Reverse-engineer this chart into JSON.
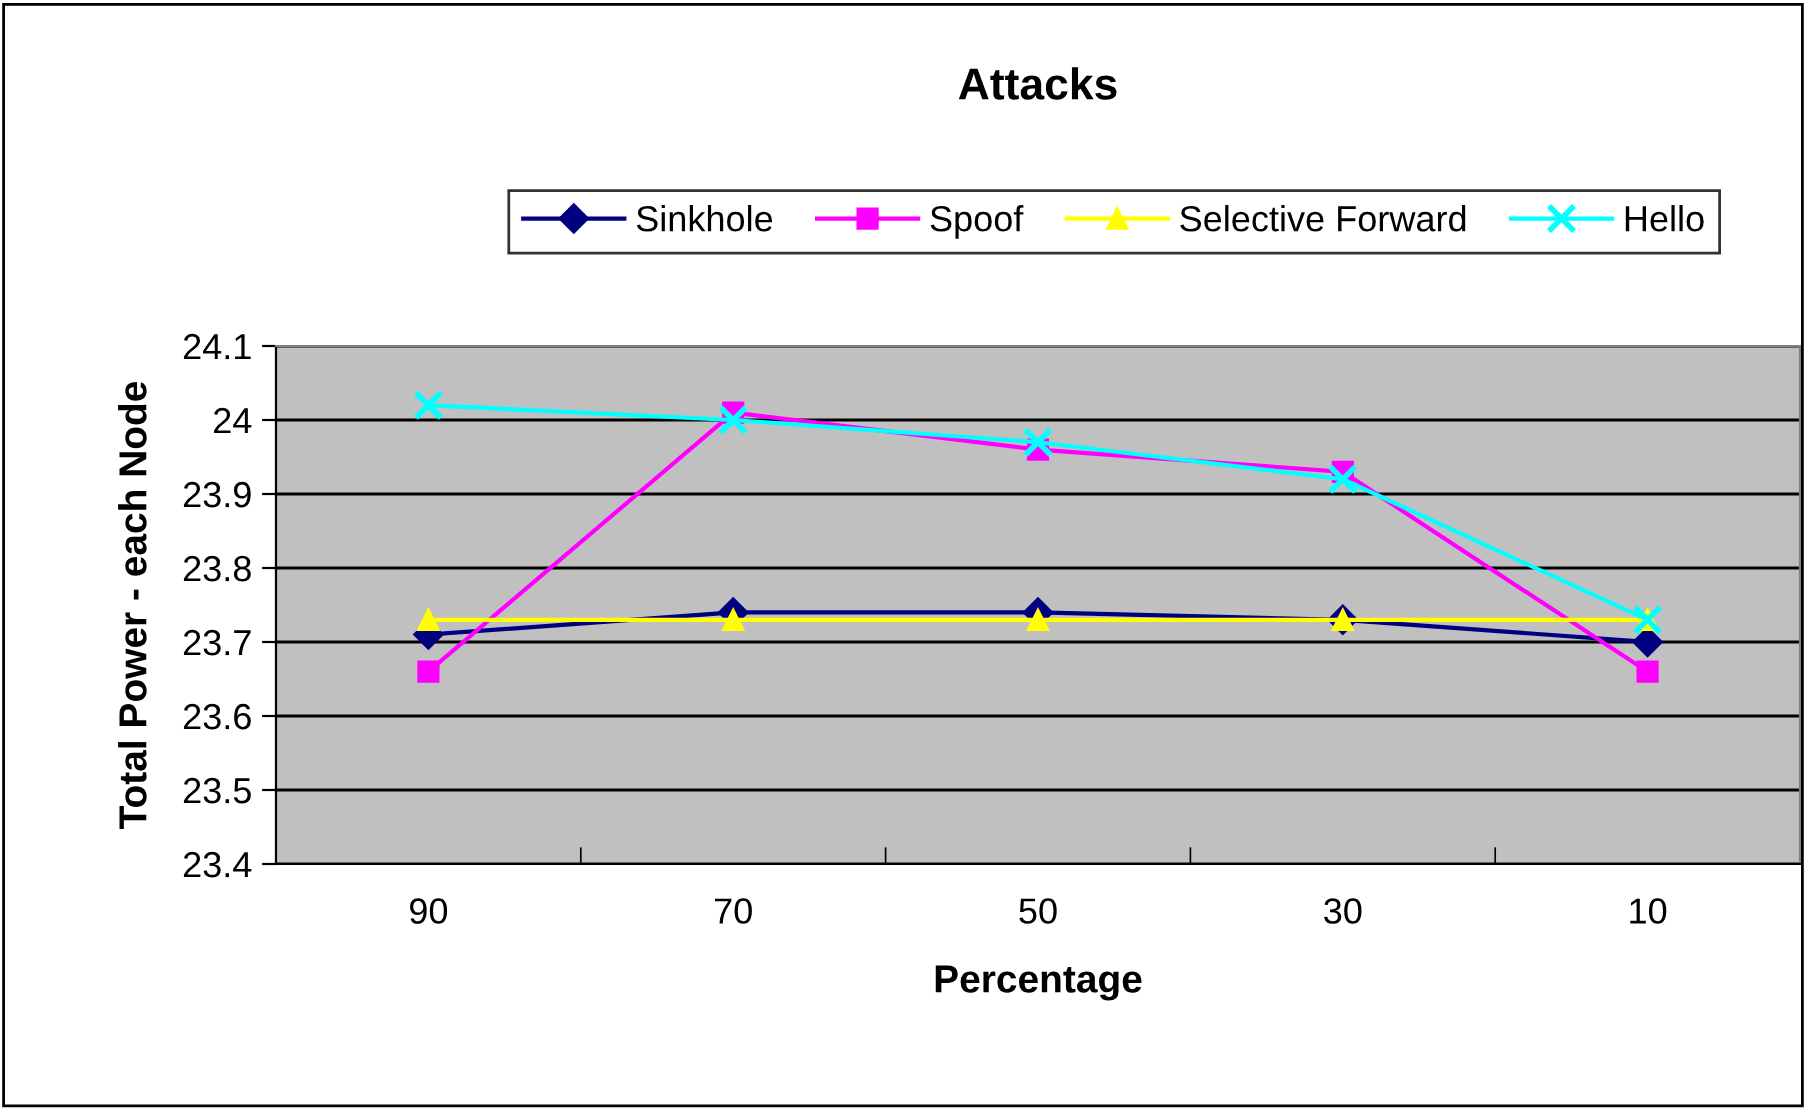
{
  "chart_data": {
    "type": "line",
    "title": "Attacks",
    "xlabel": "Percentage",
    "ylabel": "Total Power - each Node",
    "categories": [
      "90",
      "70",
      "50",
      "30",
      "10"
    ],
    "series": [
      {
        "name": "Sinkhole",
        "color": "#000080",
        "marker": "diamond",
        "values": [
          23.71,
          23.74,
          23.74,
          23.73,
          23.7
        ]
      },
      {
        "name": "Spoof",
        "color": "#ff00ff",
        "marker": "square",
        "values": [
          23.66,
          24.01,
          23.96,
          23.93,
          23.66
        ]
      },
      {
        "name": "Selective Forward",
        "color": "#ffff00",
        "marker": "triangle",
        "values": [
          23.73,
          23.73,
          23.73,
          23.73,
          23.73
        ]
      },
      {
        "name": "Hello",
        "color": "#00ffff",
        "marker": "cross",
        "values": [
          24.02,
          24.0,
          23.97,
          23.92,
          23.73
        ]
      }
    ],
    "ylim": [
      23.4,
      24.1
    ],
    "yticks": [
      23.4,
      23.5,
      23.6,
      23.7,
      23.8,
      23.9,
      24,
      24.1
    ],
    "grid": "y",
    "legend": "top"
  }
}
